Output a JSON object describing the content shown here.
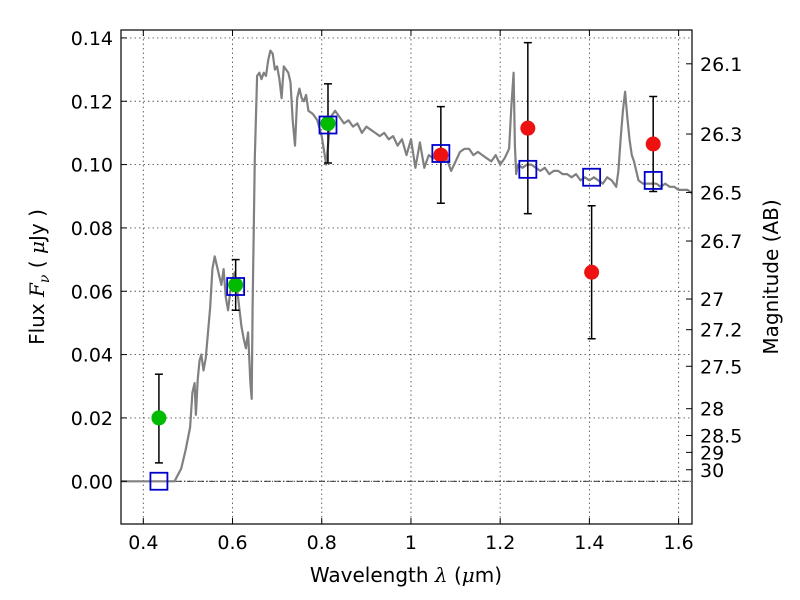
{
  "chart_data": {
    "type": "scatter",
    "xlabel": {
      "text": "Wavelength",
      "symbol": "λ",
      "unit_open": " (",
      "unit_mu": "μ",
      "unit_rest": "m)"
    },
    "ylabel": {
      "text": "Flux",
      "symbol": "F",
      "sub": "ν",
      "unit_open": "( ",
      "unit_mu": "μ",
      "unit_rest": "Jy )"
    },
    "y2label": "Magnitude (AB)",
    "xlim": [
      0.35,
      1.63
    ],
    "ylim": [
      -0.0135,
      0.1425
    ],
    "grid": true,
    "x_ticks": [
      {
        "v": 0.4,
        "label": "0.4"
      },
      {
        "v": 0.6,
        "label": "0.6"
      },
      {
        "v": 0.8,
        "label": "0.8"
      },
      {
        "v": 1.0,
        "label": "1"
      },
      {
        "v": 1.2,
        "label": "1.2"
      },
      {
        "v": 1.4,
        "label": "1.4"
      },
      {
        "v": 1.6,
        "label": "1.6"
      }
    ],
    "y_ticks": [
      {
        "v": 0.0,
        "label": "0.00"
      },
      {
        "v": 0.02,
        "label": "0.02"
      },
      {
        "v": 0.04,
        "label": "0.04"
      },
      {
        "v": 0.06,
        "label": "0.06"
      },
      {
        "v": 0.08,
        "label": "0.08"
      },
      {
        "v": 0.1,
        "label": "0.10"
      },
      {
        "v": 0.12,
        "label": "0.12"
      },
      {
        "v": 0.14,
        "label": "0.14"
      }
    ],
    "y2_ticks": [
      {
        "mag": 26.1,
        "label": "26.1"
      },
      {
        "mag": 26.3,
        "label": "26.3"
      },
      {
        "mag": 26.5,
        "label": "26.5"
      },
      {
        "mag": 26.7,
        "label": "26.7"
      },
      {
        "mag": 27.0,
        "label": "27"
      },
      {
        "mag": 27.2,
        "label": "27.2"
      },
      {
        "mag": 27.5,
        "label": "27.5"
      },
      {
        "mag": 28.0,
        "label": "28"
      },
      {
        "mag": 28.5,
        "label": "28.5"
      },
      {
        "mag": 29.0,
        "label": "29"
      },
      {
        "mag": 30.0,
        "label": "30"
      }
    ],
    "model_spectrum": {
      "color": "#808080",
      "x": [
        0.35,
        0.47,
        0.485,
        0.495,
        0.505,
        0.51,
        0.515,
        0.518,
        0.522,
        0.526,
        0.53,
        0.535,
        0.54,
        0.545,
        0.55,
        0.555,
        0.56,
        0.565,
        0.57,
        0.575,
        0.58,
        0.585,
        0.59,
        0.595,
        0.6,
        0.605,
        0.61,
        0.615,
        0.62,
        0.625,
        0.63,
        0.635,
        0.64,
        0.643,
        0.645,
        0.65,
        0.655,
        0.66,
        0.665,
        0.67,
        0.675,
        0.68,
        0.685,
        0.69,
        0.695,
        0.7,
        0.705,
        0.71,
        0.715,
        0.72,
        0.725,
        0.73,
        0.735,
        0.74,
        0.745,
        0.75,
        0.755,
        0.76,
        0.765,
        0.77,
        0.78,
        0.79,
        0.8,
        0.81,
        0.82,
        0.83,
        0.84,
        0.85,
        0.86,
        0.87,
        0.88,
        0.89,
        0.9,
        0.91,
        0.92,
        0.93,
        0.94,
        0.95,
        0.96,
        0.97,
        0.98,
        0.99,
        1.0,
        1.01,
        1.02,
        1.03,
        1.04,
        1.05,
        1.06,
        1.07,
        1.08,
        1.09,
        1.1,
        1.11,
        1.12,
        1.13,
        1.14,
        1.15,
        1.16,
        1.17,
        1.18,
        1.19,
        1.2,
        1.21,
        1.22,
        1.225,
        1.23,
        1.233,
        1.236,
        1.24,
        1.25,
        1.26,
        1.27,
        1.28,
        1.29,
        1.3,
        1.31,
        1.32,
        1.33,
        1.34,
        1.35,
        1.36,
        1.37,
        1.38,
        1.39,
        1.4,
        1.41,
        1.42,
        1.43,
        1.44,
        1.45,
        1.46,
        1.465,
        1.47,
        1.475,
        1.48,
        1.485,
        1.49,
        1.495,
        1.5,
        1.51,
        1.52,
        1.53,
        1.54,
        1.55,
        1.56,
        1.57,
        1.58,
        1.59,
        1.6,
        1.61,
        1.62,
        1.63
      ],
      "y": [
        0.0,
        0.0,
        0.004,
        0.01,
        0.017,
        0.028,
        0.031,
        0.021,
        0.032,
        0.038,
        0.04,
        0.035,
        0.039,
        0.047,
        0.055,
        0.067,
        0.071,
        0.068,
        0.065,
        0.062,
        0.067,
        0.058,
        0.054,
        0.06,
        0.064,
        0.066,
        0.061,
        0.055,
        0.049,
        0.045,
        0.042,
        0.047,
        0.031,
        0.026,
        0.055,
        0.102,
        0.128,
        0.129,
        0.127,
        0.129,
        0.128,
        0.133,
        0.136,
        0.135,
        0.13,
        0.131,
        0.127,
        0.121,
        0.131,
        0.13,
        0.129,
        0.126,
        0.114,
        0.106,
        0.121,
        0.124,
        0.121,
        0.12,
        0.122,
        0.117,
        0.116,
        0.114,
        0.109,
        0.1,
        0.115,
        0.117,
        0.115,
        0.113,
        0.114,
        0.112,
        0.113,
        0.11,
        0.112,
        0.111,
        0.11,
        0.109,
        0.11,
        0.108,
        0.109,
        0.106,
        0.108,
        0.103,
        0.108,
        0.099,
        0.107,
        0.099,
        0.103,
        0.102,
        0.104,
        0.101,
        0.102,
        0.098,
        0.101,
        0.104,
        0.105,
        0.105,
        0.103,
        0.104,
        0.103,
        0.102,
        0.101,
        0.103,
        0.1,
        0.102,
        0.105,
        0.118,
        0.129,
        0.106,
        0.097,
        0.1,
        0.099,
        0.1,
        0.1,
        0.099,
        0.098,
        0.099,
        0.097,
        0.098,
        0.098,
        0.097,
        0.097,
        0.096,
        0.097,
        0.095,
        0.096,
        0.095,
        0.096,
        0.095,
        0.094,
        0.096,
        0.095,
        0.093,
        0.098,
        0.108,
        0.117,
        0.123,
        0.115,
        0.108,
        0.103,
        0.101,
        0.095,
        0.094,
        0.094,
        0.094,
        0.094,
        0.093,
        0.094,
        0.093,
        0.093,
        0.092,
        0.092,
        0.092,
        0.091
      ]
    },
    "series": [
      {
        "marker": "circle",
        "color": "#00bb00",
        "points": [
          {
            "x": 0.435,
            "y": 0.02,
            "ylo": 0.0058,
            "yhi": 0.0338
          },
          {
            "x": 0.607,
            "y": 0.062,
            "ylo": 0.054,
            "yhi": 0.07
          },
          {
            "x": 0.814,
            "y": 0.113,
            "ylo": 0.1005,
            "yhi": 0.1255
          }
        ]
      },
      {
        "marker": "circle",
        "color": "#ee1111",
        "points": [
          {
            "x": 1.067,
            "y": 0.103,
            "ylo": 0.0878,
            "yhi": 0.1183
          },
          {
            "x": 1.262,
            "y": 0.1115,
            "ylo": 0.0845,
            "yhi": 0.1385
          },
          {
            "x": 1.405,
            "y": 0.066,
            "ylo": 0.045,
            "yhi": 0.087
          },
          {
            "x": 1.543,
            "y": 0.1065,
            "ylo": 0.0915,
            "yhi": 0.1215
          }
        ]
      },
      {
        "marker": "square-open",
        "color": "#0000cc",
        "points": [
          {
            "x": 0.435,
            "y": 0.0
          },
          {
            "x": 0.607,
            "y": 0.0615
          },
          {
            "x": 0.814,
            "y": 0.1125
          },
          {
            "x": 1.067,
            "y": 0.1035
          },
          {
            "x": 1.262,
            "y": 0.0985
          },
          {
            "x": 1.405,
            "y": 0.096
          },
          {
            "x": 1.543,
            "y": 0.095
          }
        ]
      }
    ]
  }
}
